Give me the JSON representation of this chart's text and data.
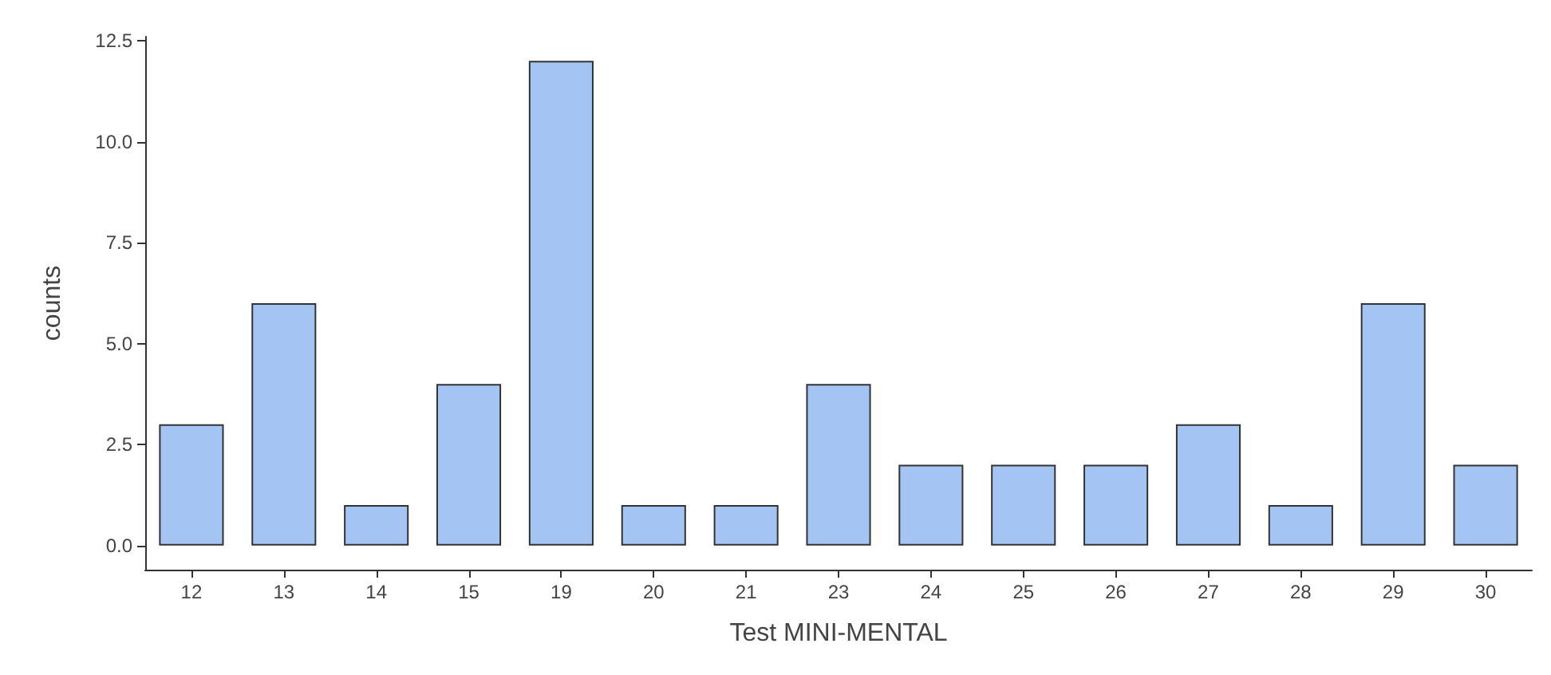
{
  "chart_data": {
    "type": "bar",
    "xlabel": "Test MINI-MENTAL",
    "ylabel": "counts",
    "categories": [
      "12",
      "13",
      "14",
      "15",
      "19",
      "20",
      "21",
      "23",
      "24",
      "25",
      "26",
      "27",
      "28",
      "29",
      "30"
    ],
    "values": [
      3,
      6,
      1,
      4,
      12,
      1,
      1,
      4,
      2,
      2,
      2,
      3,
      1,
      6,
      2
    ],
    "color": "#a4c4f4",
    "ylim": [
      -0.6,
      12.6
    ],
    "yticks": [
      {
        "value": 0,
        "label": "0.0"
      },
      {
        "value": 2.5,
        "label": "2.5"
      },
      {
        "value": 5,
        "label": "5.0"
      },
      {
        "value": 7.5,
        "label": "7.5"
      },
      {
        "value": 10,
        "label": "10.0"
      },
      {
        "value": 12.5,
        "label": "12.5"
      }
    ],
    "grid": false
  }
}
